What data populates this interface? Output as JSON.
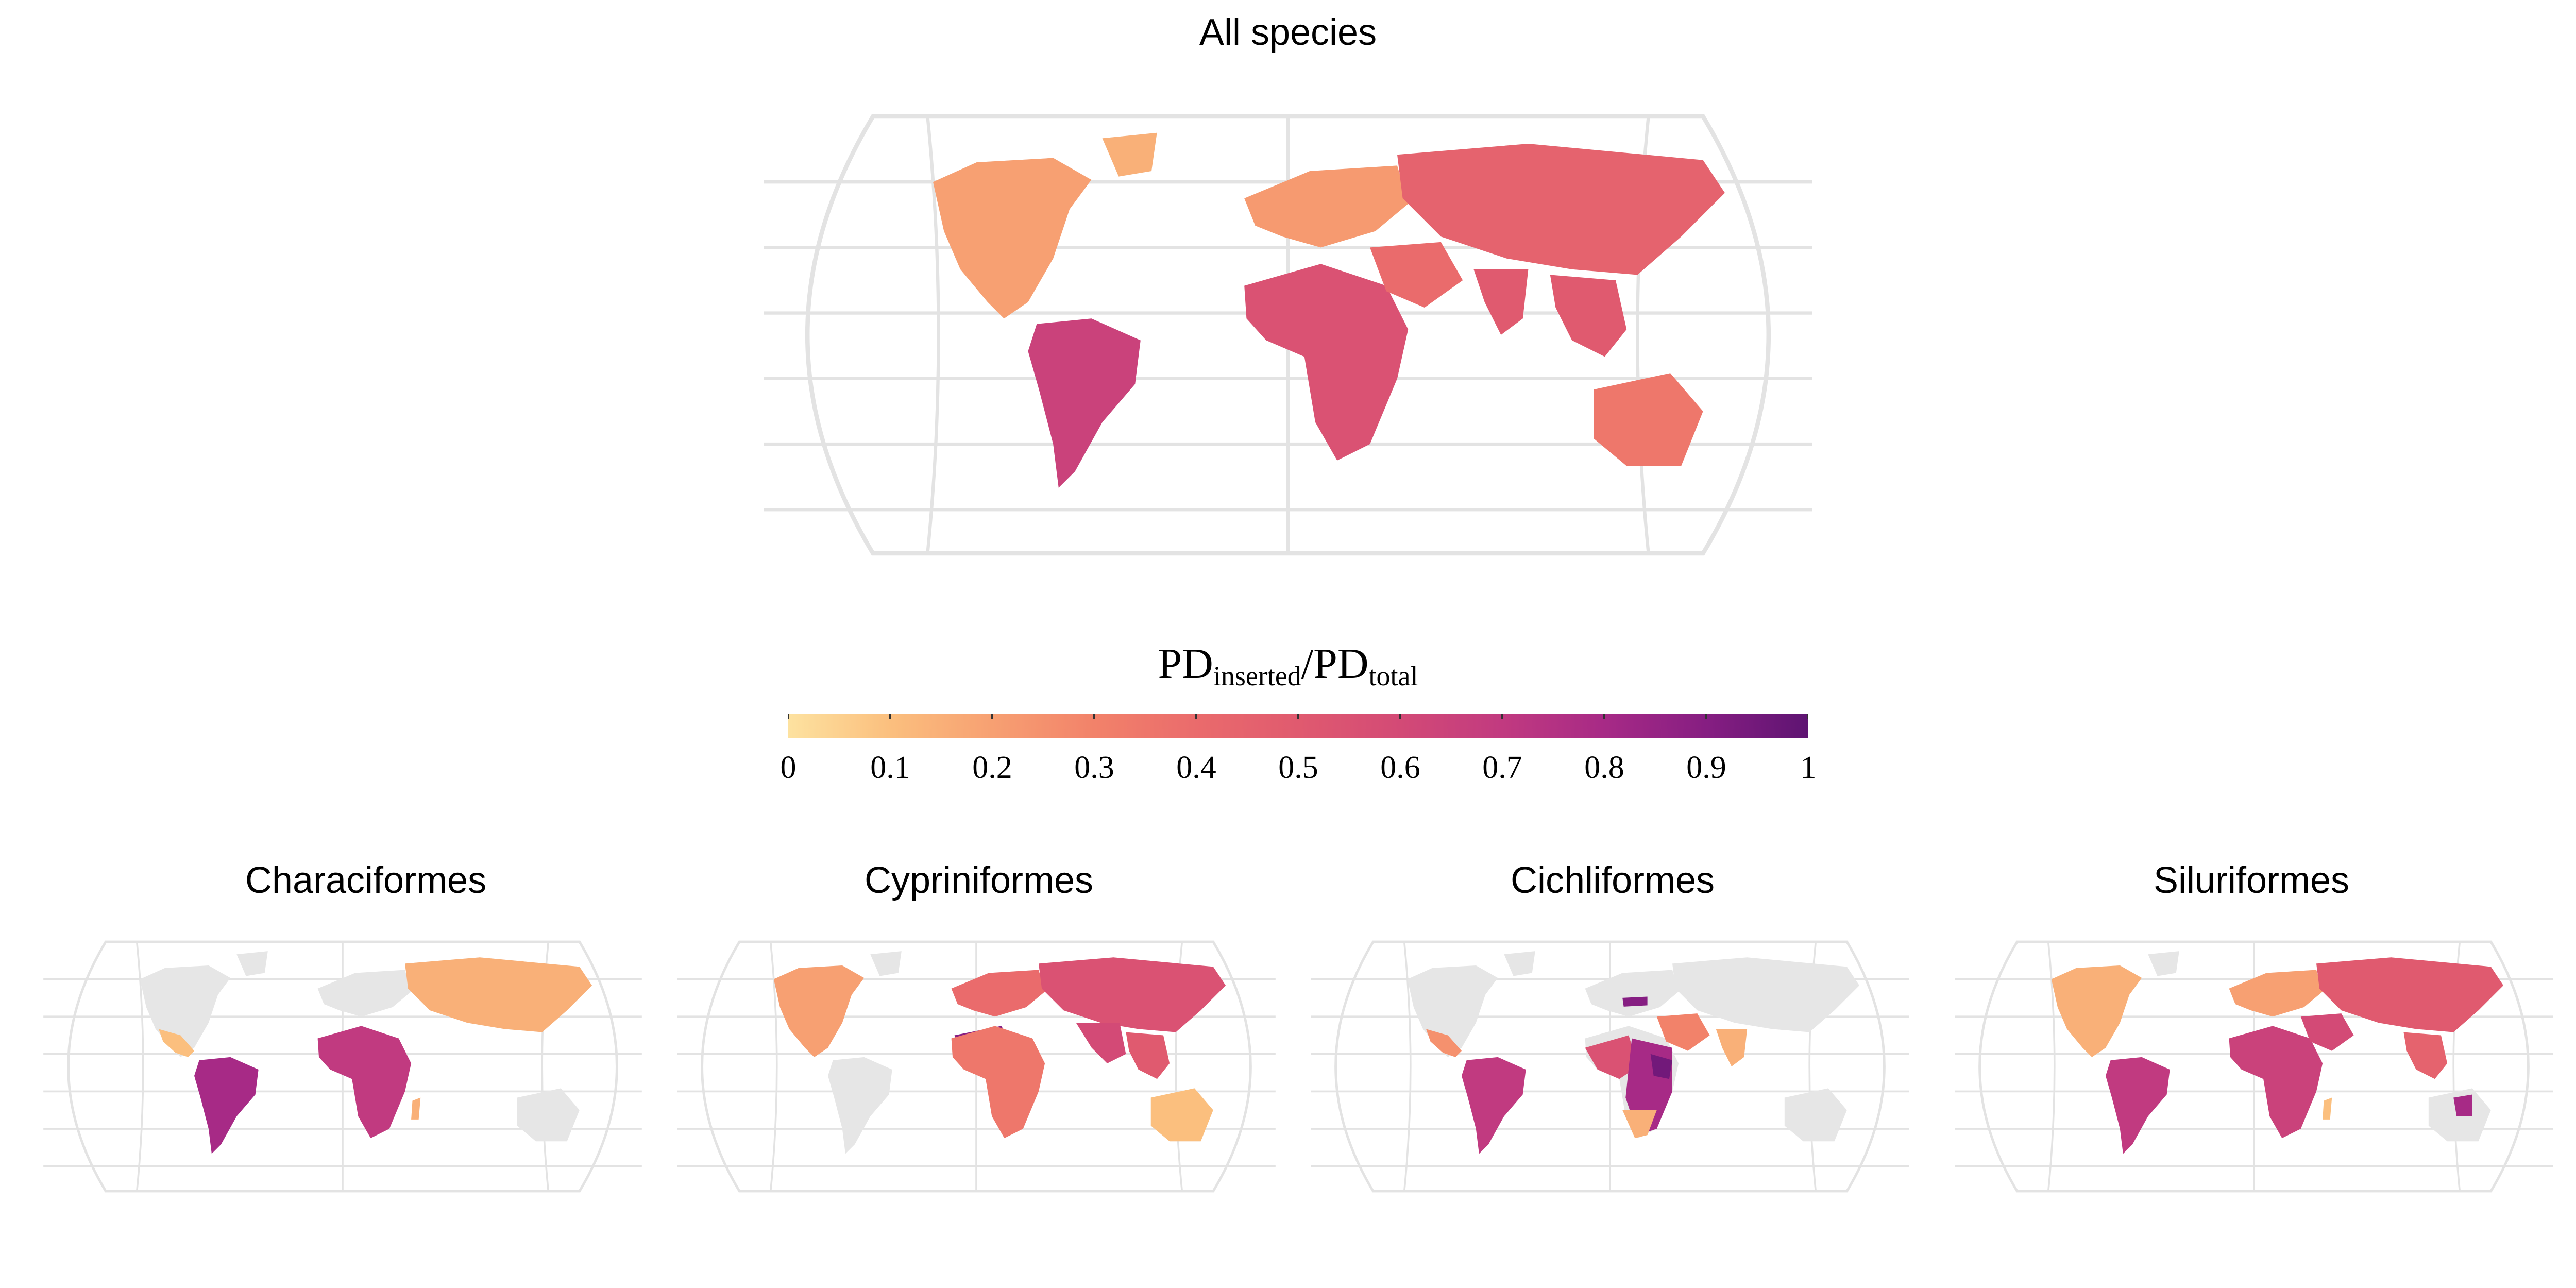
{
  "titles": {
    "main": "All species",
    "characiformes": "Characiformes",
    "cypriniformes": "Cypriniformes",
    "cichliformes": "Cichliformes",
    "siluriformes": "Siluriformes"
  },
  "legend": {
    "title_main1": "PD",
    "title_sub1": "inserted",
    "title_slash": "/",
    "title_main2": "PD",
    "title_sub2": "total",
    "ticks": [
      "0",
      "0.1",
      "0.2",
      "0.3",
      "0.4",
      "0.5",
      "0.6",
      "0.7",
      "0.8",
      "0.9",
      "1"
    ],
    "range": [
      0,
      1
    ],
    "colors": [
      "#fde2a0",
      "#fbbf7e",
      "#f7a072",
      "#f2826a",
      "#ea6b6c",
      "#e05a6f",
      "#d34a76",
      "#c13a80",
      "#a72a86",
      "#861e82",
      "#5e1472"
    ]
  },
  "map_style": {
    "no_data_color": "#e6e6e6",
    "graticule_color": "#e3e3e3"
  },
  "maps": {
    "all_species": {
      "north_america": 0.2,
      "greenland": 0.15,
      "south_america": 0.65,
      "europe": 0.22,
      "africa": 0.55,
      "middle_east": 0.4,
      "asia": 0.45,
      "india": 0.5,
      "southeast_asia": 0.5,
      "australia": 0.35
    },
    "characiformes": {
      "mexico": 0.1,
      "south_america": 0.8,
      "africa": 0.7,
      "asia": 0.15,
      "madagascar": 0.15
    },
    "cypriniformes": {
      "north_america": 0.2,
      "north_africa": 0.9,
      "africa": 0.35,
      "europe": 0.4,
      "asia": 0.55,
      "south_asia": 0.6,
      "southeast_asia": 0.5,
      "australia": 0.1
    },
    "cichliformes": {
      "mexico": 0.25,
      "south_america": 0.7,
      "west_africa": 0.55,
      "east_africa": 0.8,
      "south_africa": 0.15,
      "middle_east": 0.3,
      "india": 0.15,
      "rift_lakes": 0.95,
      "caspian_spot": 0.9
    },
    "siluriformes": {
      "north_america": 0.15,
      "south_america": 0.7,
      "africa": 0.65,
      "europe": 0.2,
      "asia": 0.5,
      "middle_east": 0.6,
      "southeast_asia": 0.45,
      "australia_spot": 0.8,
      "madagascar": 0.1
    }
  }
}
